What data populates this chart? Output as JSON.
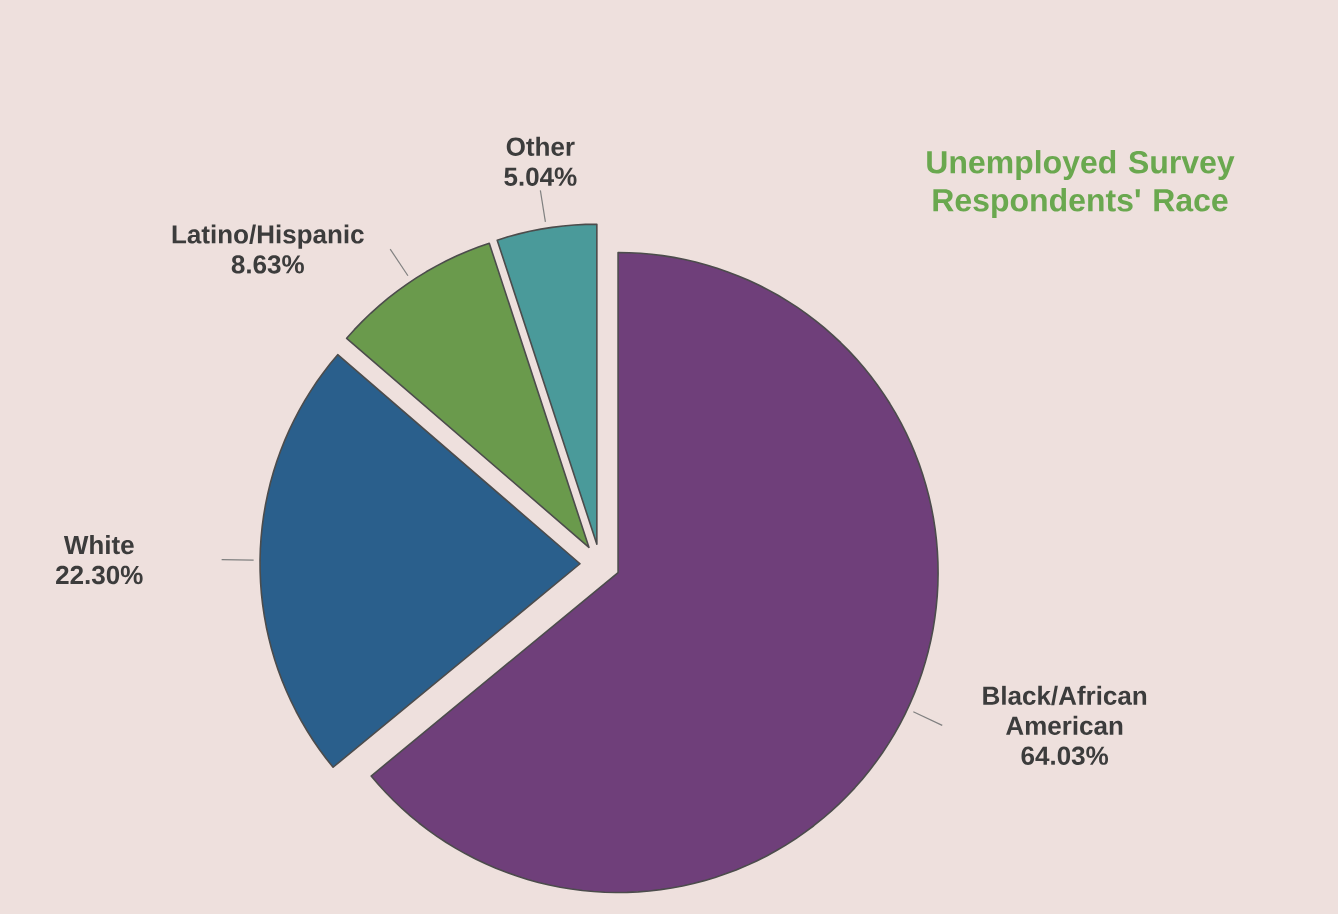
{
  "chart_data": {
    "type": "pie",
    "title": "Unemployed Survey Respondents' Race",
    "categories": [
      "Black/African American",
      "White",
      "Latino/Hispanic",
      "Other"
    ],
    "values": [
      64.03,
      22.3,
      8.63,
      5.04
    ],
    "value_labels": [
      "64.03%",
      "22.30%",
      "8.63%",
      "5.04%"
    ],
    "colors": [
      "#6f3f7a",
      "#2a5f8c",
      "#6a9a4c",
      "#4a9a9a"
    ]
  }
}
